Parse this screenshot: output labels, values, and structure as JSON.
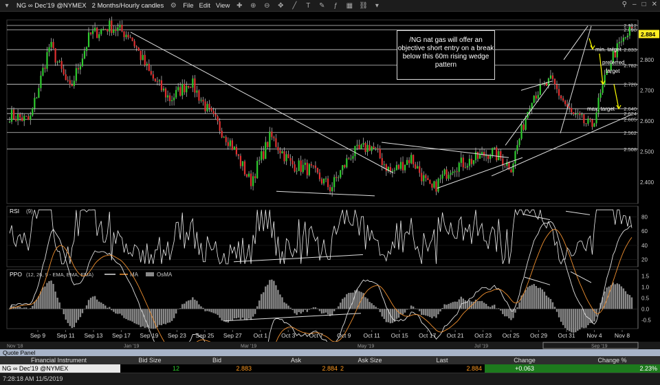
{
  "toolbar": {
    "symbol": "NG ∞ Dec'19 @NYMEX",
    "timeframe": "2 Months/Hourly candles",
    "menus": [
      "File",
      "Edit",
      "View"
    ]
  },
  "annotations": {
    "note": "/NG nat gas will offer an objective short entry on a break below this 60m rising wedge pattern",
    "min_target": "min. target",
    "preferred_target": "preferred target",
    "max_target": "max. target"
  },
  "colors": {
    "up": "#2fcc2f",
    "down": "#e03030",
    "ppo_line": "#e0e0e0",
    "ma_line": "#f09030",
    "osma": "#8a8a8a",
    "last_price_bg": "#ffee22",
    "arrow": "#ffff00"
  },
  "chart_data": [
    {
      "type": "candlestick",
      "title": "NG ∞ Dec'19 @NYMEX",
      "y_ticks": [
        2.4,
        2.5,
        2.6,
        2.7,
        2.8
      ],
      "horizontal_levels": [
        "2.912",
        "2.898",
        "2.833",
        "2.782",
        "2.720",
        "2.640",
        "2.624",
        "2.605",
        "2.562",
        "2.508"
      ],
      "last_price": "2.884",
      "ylim": [
        2.33,
        2.93
      ],
      "x_labels": [
        "Sep 9",
        "Sep 11",
        "Sep 13",
        "Sep 17",
        "Sep 19",
        "Sep 23",
        "Sep 25",
        "Sep 27",
        "Oct 1",
        "Oct 3",
        "Oct 7",
        "Oct 9",
        "Oct 11",
        "Oct 15",
        "Oct 17",
        "Oct 21",
        "Oct 23",
        "Oct 25",
        "Oct 29",
        "Oct 31",
        "Nov 4",
        "Nov 8"
      ],
      "x_labels_secondary": [
        "Nov '18",
        "Jan '19",
        "Mar '19",
        "May '19",
        "Jul '19",
        "Sep '19"
      ],
      "price_anchors": [
        2.62,
        2.6,
        2.85,
        2.7,
        2.88,
        2.91,
        2.88,
        2.75,
        2.67,
        2.73,
        2.62,
        2.53,
        2.4,
        2.55,
        2.46,
        2.44,
        2.38,
        2.49,
        2.52,
        2.43,
        2.48,
        2.37,
        2.45,
        2.47,
        2.5,
        2.45,
        2.68,
        2.73,
        2.62,
        2.58,
        2.81,
        2.9
      ]
    },
    {
      "type": "line",
      "title": "RSI",
      "legend": "(9)",
      "y_ticks": [
        20,
        40,
        60,
        80
      ],
      "ylim": [
        10,
        95
      ]
    },
    {
      "type": "line",
      "title": "PPO",
      "legend": "(12, 26, 9 - EMA, EMA, EMA)",
      "series_names": [
        "MA",
        "OsMA"
      ],
      "y_ticks": [
        -0.5,
        0.0,
        0.5,
        1.0,
        1.5
      ],
      "y_tick_labels": [
        "-0.5",
        "0.0",
        "0.5",
        "1.0",
        "1.5"
      ],
      "ylim": [
        -0.9,
        1.8
      ]
    }
  ],
  "quote_panel": {
    "title": "Quote Panel",
    "headers": [
      "Financial Instrument",
      "Bid Size",
      "Bid",
      "Ask",
      "Ask Size",
      "Last",
      "Change",
      "Change %"
    ],
    "row": [
      "NG ∞ Dec'19 @NYMEX",
      "12",
      "2.883",
      "2.884",
      "2",
      "2.884",
      "+0.063",
      "2.23%"
    ]
  },
  "status": "7:28:18 AM 11/5/2019"
}
